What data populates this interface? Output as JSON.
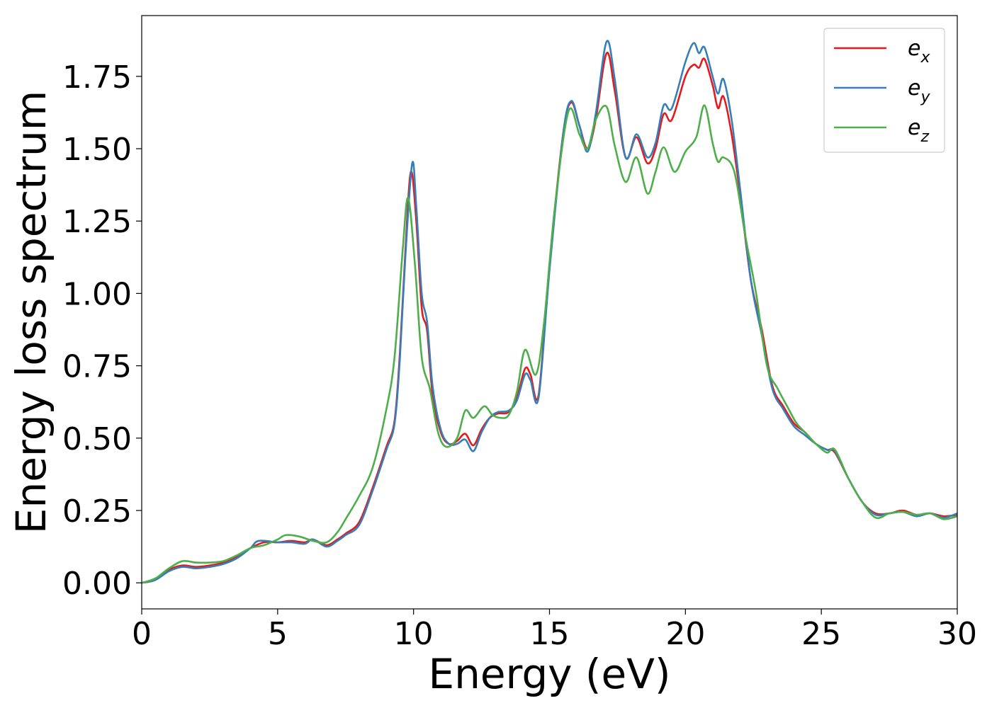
{
  "chart_data": {
    "type": "line",
    "xlabel": "Energy (eV)",
    "ylabel": "Energy loss spectrum",
    "xlim": [
      0,
      30
    ],
    "ylim": [
      -0.09,
      1.96
    ],
    "xticks": [
      0,
      5,
      10,
      15,
      20,
      25,
      30
    ],
    "xtick_labels": [
      "0",
      "5",
      "10",
      "15",
      "20",
      "25",
      "30"
    ],
    "yticks": [
      0.0,
      0.25,
      0.5,
      0.75,
      1.0,
      1.25,
      1.5,
      1.75
    ],
    "ytick_labels": [
      "0.00",
      "0.25",
      "0.50",
      "0.75",
      "1.00",
      "1.25",
      "1.50",
      "1.75"
    ],
    "grid": false,
    "legend_position": "top-right",
    "series": [
      {
        "name": "e_x",
        "legend_main": "e",
        "legend_sub": "x",
        "color": "#e41a1c",
        "points": [
          [
            0,
            0.0
          ],
          [
            0.5,
            0.01
          ],
          [
            1,
            0.045
          ],
          [
            1.5,
            0.06
          ],
          [
            2,
            0.055
          ],
          [
            2.5,
            0.06
          ],
          [
            3,
            0.07
          ],
          [
            3.5,
            0.09
          ],
          [
            4,
            0.12
          ],
          [
            4.5,
            0.14
          ],
          [
            5,
            0.14
          ],
          [
            5.5,
            0.145
          ],
          [
            6,
            0.14
          ],
          [
            6.3,
            0.15
          ],
          [
            6.8,
            0.13
          ],
          [
            7.2,
            0.15
          ],
          [
            7.5,
            0.17
          ],
          [
            8,
            0.21
          ],
          [
            8.5,
            0.33
          ],
          [
            9,
            0.47
          ],
          [
            9.3,
            0.56
          ],
          [
            9.5,
            0.8
          ],
          [
            9.7,
            1.15
          ],
          [
            9.9,
            1.42
          ],
          [
            10.1,
            1.25
          ],
          [
            10.3,
            0.95
          ],
          [
            10.5,
            0.87
          ],
          [
            10.7,
            0.65
          ],
          [
            11,
            0.52
          ],
          [
            11.3,
            0.48
          ],
          [
            11.6,
            0.49
          ],
          [
            11.9,
            0.515
          ],
          [
            12.2,
            0.475
          ],
          [
            12.5,
            0.53
          ],
          [
            12.8,
            0.57
          ],
          [
            13.1,
            0.585
          ],
          [
            13.5,
            0.59
          ],
          [
            13.8,
            0.64
          ],
          [
            14.1,
            0.74
          ],
          [
            14.3,
            0.72
          ],
          [
            14.6,
            0.65
          ],
          [
            15,
            1.1
          ],
          [
            15.5,
            1.55
          ],
          [
            15.8,
            1.66
          ],
          [
            16.1,
            1.58
          ],
          [
            16.4,
            1.5
          ],
          [
            16.7,
            1.6
          ],
          [
            17.1,
            1.83
          ],
          [
            17.4,
            1.7
          ],
          [
            17.8,
            1.47
          ],
          [
            18.2,
            1.54
          ],
          [
            18.6,
            1.45
          ],
          [
            18.9,
            1.5
          ],
          [
            19.2,
            1.62
          ],
          [
            19.5,
            1.6
          ],
          [
            20,
            1.75
          ],
          [
            20.3,
            1.79
          ],
          [
            20.5,
            1.78
          ],
          [
            20.7,
            1.81
          ],
          [
            21,
            1.72
          ],
          [
            21.2,
            1.64
          ],
          [
            21.4,
            1.68
          ],
          [
            21.7,
            1.55
          ],
          [
            22,
            1.35
          ],
          [
            22.4,
            1.05
          ],
          [
            22.8,
            0.88
          ],
          [
            23.2,
            0.68
          ],
          [
            23.6,
            0.61
          ],
          [
            24,
            0.55
          ],
          [
            24.4,
            0.52
          ],
          [
            24.8,
            0.48
          ],
          [
            25.2,
            0.46
          ],
          [
            25.5,
            0.45
          ],
          [
            26,
            0.36
          ],
          [
            26.5,
            0.28
          ],
          [
            27,
            0.24
          ],
          [
            27.5,
            0.24
          ],
          [
            28,
            0.25
          ],
          [
            28.5,
            0.235
          ],
          [
            29,
            0.24
          ],
          [
            29.5,
            0.23
          ],
          [
            30,
            0.235
          ]
        ]
      },
      {
        "name": "e_y",
        "legend_main": "e",
        "legend_sub": "y",
        "color": "#377eb8",
        "points": [
          [
            0,
            0.0
          ],
          [
            0.5,
            0.01
          ],
          [
            1,
            0.04
          ],
          [
            1.5,
            0.055
          ],
          [
            2,
            0.05
          ],
          [
            2.5,
            0.055
          ],
          [
            3,
            0.065
          ],
          [
            3.5,
            0.085
          ],
          [
            4,
            0.12
          ],
          [
            4.3,
            0.145
          ],
          [
            5,
            0.14
          ],
          [
            5.5,
            0.14
          ],
          [
            6,
            0.135
          ],
          [
            6.3,
            0.15
          ],
          [
            6.8,
            0.125
          ],
          [
            7.2,
            0.145
          ],
          [
            7.5,
            0.165
          ],
          [
            8,
            0.2
          ],
          [
            8.5,
            0.32
          ],
          [
            9,
            0.46
          ],
          [
            9.3,
            0.55
          ],
          [
            9.5,
            0.78
          ],
          [
            9.7,
            1.13
          ],
          [
            9.95,
            1.45
          ],
          [
            10.1,
            1.3
          ],
          [
            10.3,
            1.0
          ],
          [
            10.5,
            0.9
          ],
          [
            10.7,
            0.68
          ],
          [
            11,
            0.53
          ],
          [
            11.3,
            0.48
          ],
          [
            11.6,
            0.48
          ],
          [
            11.9,
            0.495
          ],
          [
            12.2,
            0.455
          ],
          [
            12.5,
            0.52
          ],
          [
            12.8,
            0.57
          ],
          [
            13.1,
            0.59
          ],
          [
            13.5,
            0.595
          ],
          [
            13.8,
            0.63
          ],
          [
            14.1,
            0.72
          ],
          [
            14.3,
            0.7
          ],
          [
            14.6,
            0.64
          ],
          [
            15,
            1.08
          ],
          [
            15.5,
            1.55
          ],
          [
            15.8,
            1.665
          ],
          [
            16.1,
            1.58
          ],
          [
            16.4,
            1.49
          ],
          [
            16.7,
            1.62
          ],
          [
            17.1,
            1.87
          ],
          [
            17.4,
            1.74
          ],
          [
            17.8,
            1.47
          ],
          [
            18.2,
            1.55
          ],
          [
            18.6,
            1.47
          ],
          [
            18.9,
            1.52
          ],
          [
            19.2,
            1.65
          ],
          [
            19.5,
            1.64
          ],
          [
            20,
            1.8
          ],
          [
            20.3,
            1.865
          ],
          [
            20.5,
            1.83
          ],
          [
            20.7,
            1.85
          ],
          [
            21,
            1.75
          ],
          [
            21.2,
            1.69
          ],
          [
            21.4,
            1.74
          ],
          [
            21.7,
            1.6
          ],
          [
            22,
            1.37
          ],
          [
            22.4,
            1.05
          ],
          [
            22.8,
            0.86
          ],
          [
            23.2,
            0.67
          ],
          [
            23.6,
            0.6
          ],
          [
            24,
            0.54
          ],
          [
            24.4,
            0.51
          ],
          [
            24.8,
            0.48
          ],
          [
            25.2,
            0.46
          ],
          [
            25.5,
            0.455
          ],
          [
            26,
            0.36
          ],
          [
            26.5,
            0.28
          ],
          [
            27,
            0.235
          ],
          [
            27.5,
            0.24
          ],
          [
            28,
            0.245
          ],
          [
            28.5,
            0.23
          ],
          [
            29,
            0.24
          ],
          [
            29.5,
            0.225
          ],
          [
            30,
            0.24
          ]
        ]
      },
      {
        "name": "e_z",
        "legend_main": "e",
        "legend_sub": "z",
        "color": "#4daf4a",
        "points": [
          [
            0,
            0.0
          ],
          [
            0.5,
            0.015
          ],
          [
            1,
            0.05
          ],
          [
            1.5,
            0.075
          ],
          [
            2,
            0.07
          ],
          [
            2.5,
            0.07
          ],
          [
            3,
            0.075
          ],
          [
            3.5,
            0.095
          ],
          [
            4,
            0.12
          ],
          [
            4.5,
            0.13
          ],
          [
            5,
            0.15
          ],
          [
            5.3,
            0.165
          ],
          [
            5.8,
            0.16
          ],
          [
            6.3,
            0.145
          ],
          [
            6.8,
            0.14
          ],
          [
            7.2,
            0.175
          ],
          [
            7.5,
            0.22
          ],
          [
            8,
            0.3
          ],
          [
            8.5,
            0.4
          ],
          [
            9,
            0.6
          ],
          [
            9.3,
            0.78
          ],
          [
            9.6,
            1.15
          ],
          [
            9.8,
            1.33
          ],
          [
            10.05,
            1.1
          ],
          [
            10.3,
            0.78
          ],
          [
            10.6,
            0.67
          ],
          [
            10.9,
            0.52
          ],
          [
            11.2,
            0.47
          ],
          [
            11.6,
            0.5
          ],
          [
            11.9,
            0.595
          ],
          [
            12.2,
            0.57
          ],
          [
            12.6,
            0.61
          ],
          [
            12.9,
            0.58
          ],
          [
            13.2,
            0.57
          ],
          [
            13.5,
            0.58
          ],
          [
            13.8,
            0.66
          ],
          [
            14.1,
            0.805
          ],
          [
            14.5,
            0.72
          ],
          [
            14.8,
            0.9
          ],
          [
            15.2,
            1.3
          ],
          [
            15.7,
            1.63
          ],
          [
            16.1,
            1.55
          ],
          [
            16.4,
            1.5
          ],
          [
            16.7,
            1.6
          ],
          [
            17.1,
            1.645
          ],
          [
            17.4,
            1.51
          ],
          [
            17.8,
            1.385
          ],
          [
            18.2,
            1.47
          ],
          [
            18.6,
            1.345
          ],
          [
            18.9,
            1.42
          ],
          [
            19.2,
            1.505
          ],
          [
            19.6,
            1.42
          ],
          [
            20,
            1.49
          ],
          [
            20.4,
            1.54
          ],
          [
            20.7,
            1.65
          ],
          [
            21,
            1.52
          ],
          [
            21.2,
            1.455
          ],
          [
            21.4,
            1.47
          ],
          [
            21.8,
            1.42
          ],
          [
            22.2,
            1.2
          ],
          [
            22.6,
            1.0
          ],
          [
            23,
            0.75
          ],
          [
            23.4,
            0.67
          ],
          [
            23.8,
            0.6
          ],
          [
            24.1,
            0.55
          ],
          [
            24.5,
            0.51
          ],
          [
            24.8,
            0.48
          ],
          [
            25.2,
            0.45
          ],
          [
            25.5,
            0.46
          ],
          [
            26,
            0.36
          ],
          [
            26.5,
            0.28
          ],
          [
            27,
            0.225
          ],
          [
            27.5,
            0.24
          ],
          [
            28,
            0.245
          ],
          [
            28.5,
            0.235
          ],
          [
            29,
            0.24
          ],
          [
            29.5,
            0.22
          ],
          [
            30,
            0.23
          ]
        ]
      }
    ]
  }
}
